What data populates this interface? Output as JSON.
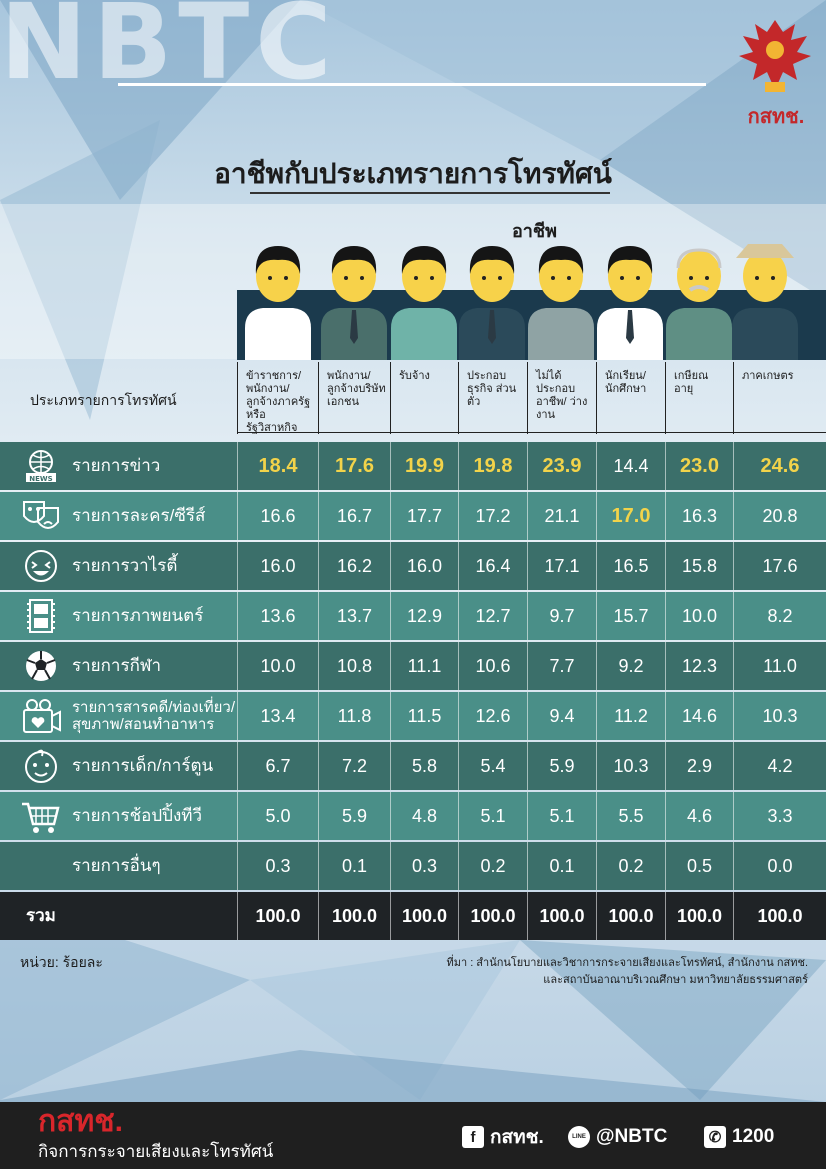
{
  "brand_watermark": "NBTC",
  "logo_text": "กสทช.",
  "title": "อาชีพกับประเภทรายการโทรทัศน์",
  "group_title": "อาชีพ",
  "row_header": "ประเภทรายการโทรทัศน์",
  "colors": {
    "dark_row": "#3b6f6a",
    "light_row": "#4a8f88",
    "total_row": "#1f2326",
    "highlight": "#f2d34a",
    "brand_red": "#d8262b"
  },
  "chart_data": {
    "type": "table",
    "title": "อาชีพกับประเภทรายการโทรทัศน์",
    "columns": [
      "ข้าราชการ/ พนักงาน/ ลูกจ้างภาครัฐ หรือรัฐวิสาหกิจ",
      "พนักงาน/ ลูกจ้างบริษัท เอกชน",
      "รับจ้าง",
      "ประกอบ ธุรกิจ ส่วนตัว",
      "ไม่ได้ ประกอบ อาชีพ/ ว่างงาน",
      "นักเรียน/ นักศึกษา",
      "เกษียณ อายุ",
      "ภาคเกษตร"
    ],
    "rows": [
      {
        "label": "รายการข่าว",
        "icon": "news-globe-icon",
        "values": [
          "18.4",
          "17.6",
          "19.9",
          "19.8",
          "23.9",
          "14.4",
          "23.0",
          "24.6"
        ],
        "highlight": [
          true,
          true,
          true,
          true,
          true,
          false,
          true,
          true
        ]
      },
      {
        "label": "รายการละคร/ซีรีส์",
        "icon": "drama-masks-icon",
        "values": [
          "16.6",
          "16.7",
          "17.7",
          "17.2",
          "21.1",
          "17.0",
          "16.3",
          "20.8"
        ],
        "highlight": [
          false,
          false,
          false,
          false,
          false,
          true,
          false,
          false
        ]
      },
      {
        "label": "รายการวาไรตี้",
        "icon": "laughing-face-icon",
        "values": [
          "16.0",
          "16.2",
          "16.0",
          "16.4",
          "17.1",
          "16.5",
          "15.8",
          "17.6"
        ]
      },
      {
        "label": "รายการภาพยนตร์",
        "icon": "film-strip-icon",
        "values": [
          "13.6",
          "13.7",
          "12.9",
          "12.7",
          "9.7",
          "15.7",
          "10.0",
          "8.2"
        ]
      },
      {
        "label": "รายการกีฬา",
        "icon": "soccer-ball-icon",
        "values": [
          "10.0",
          "10.8",
          "11.1",
          "10.6",
          "7.7",
          "9.2",
          "12.3",
          "11.0"
        ]
      },
      {
        "label": "รายการสารคดี/ท่องเที่ยว/ สุขภาพ/สอนทำอาหาร",
        "icon": "camera-heart-icon",
        "values": [
          "13.4",
          "11.8",
          "11.5",
          "12.6",
          "9.4",
          "11.2",
          "14.6",
          "10.3"
        ]
      },
      {
        "label": "รายการเด็ก/การ์ตูน",
        "icon": "baby-face-icon",
        "values": [
          "6.7",
          "7.2",
          "5.8",
          "5.4",
          "5.9",
          "10.3",
          "2.9",
          "4.2"
        ]
      },
      {
        "label": "รายการช้อปปิ้งทีวี",
        "icon": "shopping-cart-icon",
        "values": [
          "5.0",
          "5.9",
          "4.8",
          "5.1",
          "5.1",
          "5.5",
          "4.6",
          "3.3"
        ]
      },
      {
        "label": "รายการอื่นๆ",
        "icon": "",
        "values": [
          "0.3",
          "0.1",
          "0.3",
          "0.2",
          "0.1",
          "0.2",
          "0.5",
          "0.0"
        ]
      }
    ],
    "total": {
      "label": "รวม",
      "values": [
        "100.0",
        "100.0",
        "100.0",
        "100.0",
        "100.0",
        "100.0",
        "100.0",
        "100.0"
      ]
    },
    "unit": "หน่วย: ร้อยละ"
  },
  "source_line1": "ที่มา : สำนักนโยบายและวิชาการกระจายเสียงและโทรทัศน์, สำนักงาน กสทช.",
  "source_line2": "และสถาบันอาณาบริเวณศึกษา มหาวิทยาลัยธรรมศาสตร์",
  "footer": {
    "brand": "กสทช.",
    "sub": "กิจการกระจายเสียงและโทรทัศน์",
    "facebook": "กสทช.",
    "facebook_icon": "f",
    "line": "@NBTC",
    "line_icon": "LINE",
    "phone": "1200",
    "phone_icon": "✆"
  }
}
